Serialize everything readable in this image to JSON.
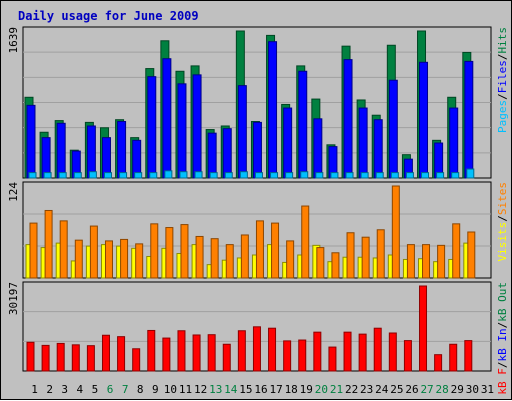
{
  "title": "Daily usage for June 2009",
  "colors": {
    "panel_bg": "#c0c0c0",
    "grid": "#a0a0a0",
    "hits": "#008040",
    "files": "#0000ff",
    "pages": "#00c0ff",
    "visits": "#ffff00",
    "sites": "#ff8000",
    "kb_out": "#008040",
    "kb_in": "#0000ff",
    "kb_f": "#ff0000",
    "weekend_label": "#008040",
    "weekday_label": "#000000"
  },
  "chart_data": [
    {
      "type": "bar",
      "panel": "hits-files-pages",
      "ymax_label": "1639",
      "legend": [
        {
          "text": "Pages",
          "color": "#00c0ff"
        },
        {
          "text": "Files",
          "color": "#0000ff"
        },
        {
          "text": "Hits",
          "color": "#008040"
        }
      ],
      "ylim": [
        0,
        1639
      ],
      "categories": [
        "1",
        "2",
        "3",
        "4",
        "5",
        "6",
        "7",
        "8",
        "9",
        "10",
        "11",
        "12",
        "13",
        "14",
        "15",
        "16",
        "17",
        "18",
        "19",
        "20",
        "21",
        "22",
        "23",
        "24",
        "25",
        "26",
        "27",
        "28",
        "29",
        "30",
        "31"
      ],
      "series": [
        {
          "name": "Hits",
          "values": [
            900,
            510,
            640,
            310,
            620,
            560,
            650,
            450,
            1220,
            1530,
            1190,
            1250,
            540,
            580,
            1650,
            630,
            1590,
            820,
            1250,
            880,
            370,
            1470,
            870,
            700,
            1480,
            260,
            1660,
            420,
            900,
            1400,
            0
          ]
        },
        {
          "name": "Files",
          "values": [
            810,
            450,
            610,
            300,
            580,
            450,
            630,
            420,
            1130,
            1330,
            1050,
            1150,
            500,
            550,
            1030,
            620,
            1520,
            780,
            1190,
            660,
            350,
            1320,
            780,
            650,
            1090,
            210,
            1290,
            390,
            780,
            1300,
            0
          ]
        },
        {
          "name": "Pages",
          "values": [
            60,
            60,
            60,
            60,
            70,
            60,
            60,
            60,
            60,
            80,
            70,
            70,
            60,
            60,
            70,
            60,
            60,
            60,
            70,
            60,
            60,
            60,
            60,
            60,
            60,
            60,
            60,
            60,
            60,
            100,
            0
          ]
        }
      ]
    },
    {
      "type": "bar",
      "panel": "visits-sites",
      "ymax_label": "124",
      "legend": [
        {
          "text": "Visits",
          "color": "#ffff00"
        },
        {
          "text": "Sites",
          "color": "#ff8000"
        }
      ],
      "ylim": [
        0,
        124
      ],
      "categories": [
        "1",
        "2",
        "3",
        "4",
        "5",
        "6",
        "7",
        "8",
        "9",
        "10",
        "11",
        "12",
        "13",
        "14",
        "15",
        "16",
        "17",
        "18",
        "19",
        "20",
        "21",
        "22",
        "23",
        "24",
        "25",
        "26",
        "27",
        "28",
        "29",
        "30",
        "31"
      ],
      "series": [
        {
          "name": "Visits",
          "values": [
            45,
            41,
            47,
            23,
            43,
            45,
            43,
            40,
            29,
            40,
            33,
            45,
            18,
            24,
            27,
            31,
            45,
            21,
            31,
            44,
            22,
            28,
            28,
            27,
            31,
            25,
            26,
            22,
            25,
            47,
            0
          ]
        },
        {
          "name": "Sites",
          "values": [
            74,
            91,
            77,
            51,
            70,
            50,
            52,
            46,
            73,
            68,
            72,
            56,
            53,
            45,
            58,
            77,
            74,
            50,
            97,
            41,
            34,
            61,
            55,
            65,
            127,
            45,
            45,
            44,
            73,
            62,
            0
          ]
        }
      ]
    },
    {
      "type": "bar",
      "panel": "kbytes",
      "ymax_label": "30197",
      "legend": [
        {
          "text": "kB F",
          "color": "#ff0000"
        },
        {
          "text": "kB In",
          "color": "#0000ff"
        },
        {
          "text": "kB Out",
          "color": "#008040"
        }
      ],
      "ylim": [
        0,
        30197
      ],
      "categories": [
        "1",
        "2",
        "3",
        "4",
        "5",
        "6",
        "7",
        "8",
        "9",
        "10",
        "11",
        "12",
        "13",
        "14",
        "15",
        "16",
        "17",
        "18",
        "19",
        "20",
        "21",
        "22",
        "23",
        "24",
        "25",
        "26",
        "27",
        "28",
        "29",
        "30",
        "31"
      ],
      "series": [
        {
          "name": "kB F",
          "values": [
            10200,
            9100,
            9800,
            9300,
            9000,
            12700,
            12200,
            7900,
            14400,
            11700,
            14300,
            12800,
            12900,
            9500,
            14300,
            15700,
            15200,
            10700,
            11000,
            13800,
            8500,
            13800,
            13100,
            15200,
            13500,
            10800,
            30197,
            5800,
            9500,
            10800,
            0
          ]
        }
      ]
    }
  ],
  "x_labels": [
    {
      "text": "1",
      "weekend": false
    },
    {
      "text": "2",
      "weekend": false
    },
    {
      "text": "3",
      "weekend": false
    },
    {
      "text": "4",
      "weekend": false
    },
    {
      "text": "5",
      "weekend": false
    },
    {
      "text": "6",
      "weekend": true
    },
    {
      "text": "7",
      "weekend": true
    },
    {
      "text": "8",
      "weekend": false
    },
    {
      "text": "9",
      "weekend": false
    },
    {
      "text": "10",
      "weekend": false
    },
    {
      "text": "11",
      "weekend": false
    },
    {
      "text": "12",
      "weekend": false
    },
    {
      "text": "13",
      "weekend": true
    },
    {
      "text": "14",
      "weekend": true
    },
    {
      "text": "15",
      "weekend": false
    },
    {
      "text": "16",
      "weekend": false
    },
    {
      "text": "17",
      "weekend": false
    },
    {
      "text": "18",
      "weekend": false
    },
    {
      "text": "19",
      "weekend": false
    },
    {
      "text": "20",
      "weekend": true
    },
    {
      "text": "21",
      "weekend": true
    },
    {
      "text": "22",
      "weekend": false
    },
    {
      "text": "23",
      "weekend": false
    },
    {
      "text": "24",
      "weekend": false
    },
    {
      "text": "25",
      "weekend": false
    },
    {
      "text": "26",
      "weekend": false
    },
    {
      "text": "27",
      "weekend": true
    },
    {
      "text": "28",
      "weekend": true
    },
    {
      "text": "29",
      "weekend": false
    },
    {
      "text": "30",
      "weekend": false
    },
    {
      "text": "31",
      "weekend": false
    }
  ]
}
